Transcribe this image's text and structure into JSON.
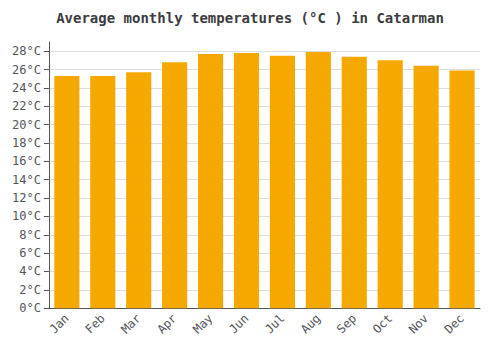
{
  "chart_data": {
    "type": "bar",
    "title": "Average monthly temperatures (°C ) in Catarman",
    "categories": [
      "Jan",
      "Feb",
      "Mar",
      "Apr",
      "May",
      "Jun",
      "Jul",
      "Aug",
      "Sep",
      "Oct",
      "Nov",
      "Dec"
    ],
    "values": [
      25.3,
      25.3,
      25.7,
      26.8,
      27.7,
      27.8,
      27.5,
      27.9,
      27.4,
      27.0,
      26.4,
      25.9
    ],
    "color": "#F5A800",
    "ylim": [
      0,
      29
    ],
    "yticks": [
      {
        "value": 0,
        "label": "0°C"
      },
      {
        "value": 2,
        "label": "2°C"
      },
      {
        "value": 4,
        "label": "4°C"
      },
      {
        "value": 6,
        "label": "6°C"
      },
      {
        "value": 8,
        "label": "8°C"
      },
      {
        "value": 10,
        "label": "10°C"
      },
      {
        "value": 12,
        "label": "12°C"
      },
      {
        "value": 14,
        "label": "14°C"
      },
      {
        "value": 16,
        "label": "16°C"
      },
      {
        "value": 18,
        "label": "18°C"
      },
      {
        "value": 20,
        "label": "20°C"
      },
      {
        "value": 22,
        "label": "22°C"
      },
      {
        "value": 24,
        "label": "24°C"
      },
      {
        "value": 26,
        "label": "26°C"
      },
      {
        "value": 28,
        "label": "28°C"
      }
    ],
    "grid": true
  }
}
